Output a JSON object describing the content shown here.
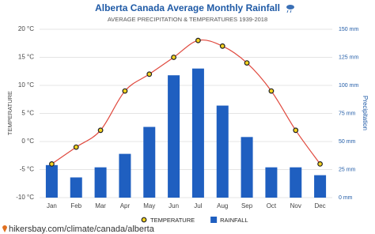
{
  "chart_data": {
    "type": "combo",
    "title": "Alberta Canada Average Monthly Rainfall",
    "subtitle": "AVERAGE PRECIPITATION & TEMPERATURES 1939-2018",
    "y_label": "TEMPERATURE",
    "y2_label": "Precipitation",
    "source": "hikersbay.com/climate/canada/alberta",
    "categories": [
      "Jan",
      "Feb",
      "Mar",
      "Apr",
      "May",
      "Jun",
      "Jul",
      "Aug",
      "Sep",
      "Oct",
      "Nov",
      "Dec"
    ],
    "series": [
      {
        "name": "TEMPERATURE",
        "type": "line",
        "color": "#e0493e",
        "marker_color": "#f5d21f",
        "values": [
          -4,
          -1,
          2,
          9,
          12,
          15,
          18,
          17,
          14,
          9,
          2,
          -4
        ]
      },
      {
        "name": "RAINFALL",
        "type": "bar",
        "axis": "y2",
        "color": "#1f5fc0",
        "values": [
          29,
          18,
          27,
          39,
          63,
          109,
          115,
          82,
          54,
          27,
          27,
          20
        ]
      }
    ],
    "ylim": [
      -10,
      20
    ],
    "yticks": [
      {
        "value": -10,
        "label": "-10 °C"
      },
      {
        "value": -5,
        "label": "-5 °C"
      },
      {
        "value": 0,
        "label": "0 °C"
      },
      {
        "value": 5,
        "label": "5 °C"
      },
      {
        "value": 10,
        "label": "10 °C"
      },
      {
        "value": 15,
        "label": "15 °C"
      },
      {
        "value": 20,
        "label": "20 °C"
      }
    ],
    "y2lim": [
      0,
      150
    ],
    "y2ticks": [
      {
        "value": 0,
        "label": "0 mm"
      },
      {
        "value": 25,
        "label": "25 mm"
      },
      {
        "value": 50,
        "label": "50 mm"
      },
      {
        "value": 75,
        "label": "75 mm"
      },
      {
        "value": 100,
        "label": "100 mm"
      },
      {
        "value": 125,
        "label": "125 mm"
      },
      {
        "value": 150,
        "label": "150 mm"
      }
    ],
    "grid": true
  }
}
